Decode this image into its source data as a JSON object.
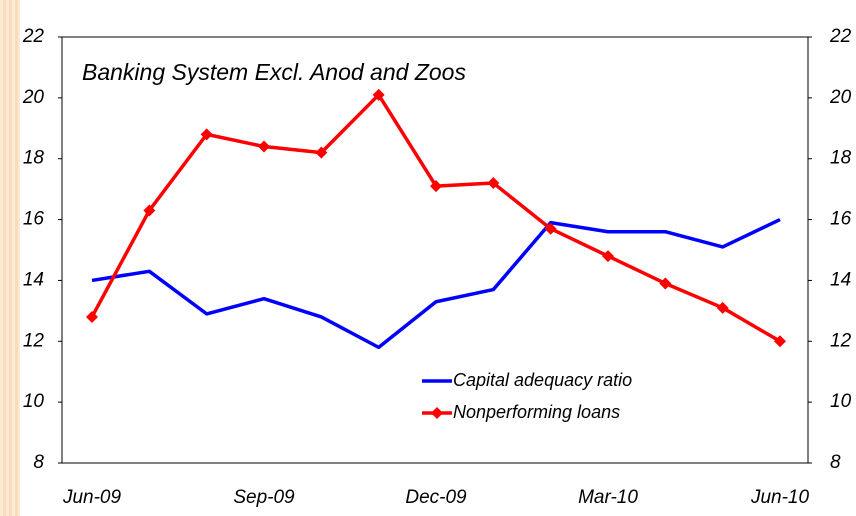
{
  "chart_data": {
    "type": "line",
    "title": "Banking System Excl. Anod and Zoos",
    "categories": [
      "Jun-09",
      null,
      null,
      "Sep-09",
      null,
      null,
      "Dec-09",
      null,
      null,
      "Mar-10",
      null,
      null,
      "Jun-10"
    ],
    "series": [
      {
        "name": "Capital adequacy ratio",
        "color": "#0000ff",
        "marker": "none",
        "values": [
          14.0,
          14.3,
          12.9,
          13.4,
          12.8,
          11.8,
          13.3,
          13.7,
          15.9,
          15.6,
          15.6,
          15.1,
          16.0
        ]
      },
      {
        "name": "Nonperforming loans",
        "color": "#ff0000",
        "marker": "diamond",
        "values": [
          12.8,
          16.3,
          18.8,
          18.4,
          18.2,
          20.1,
          17.1,
          17.2,
          15.7,
          14.8,
          13.9,
          13.1,
          12.0
        ]
      }
    ],
    "ylim": [
      8,
      22
    ],
    "yticks": [
      8,
      10,
      12,
      14,
      16,
      18,
      20,
      22
    ],
    "y2lim": [
      8,
      22
    ],
    "y2ticks": [
      8,
      10,
      12,
      14,
      16,
      18,
      20,
      22
    ],
    "legend": "lower right",
    "grid": false
  }
}
